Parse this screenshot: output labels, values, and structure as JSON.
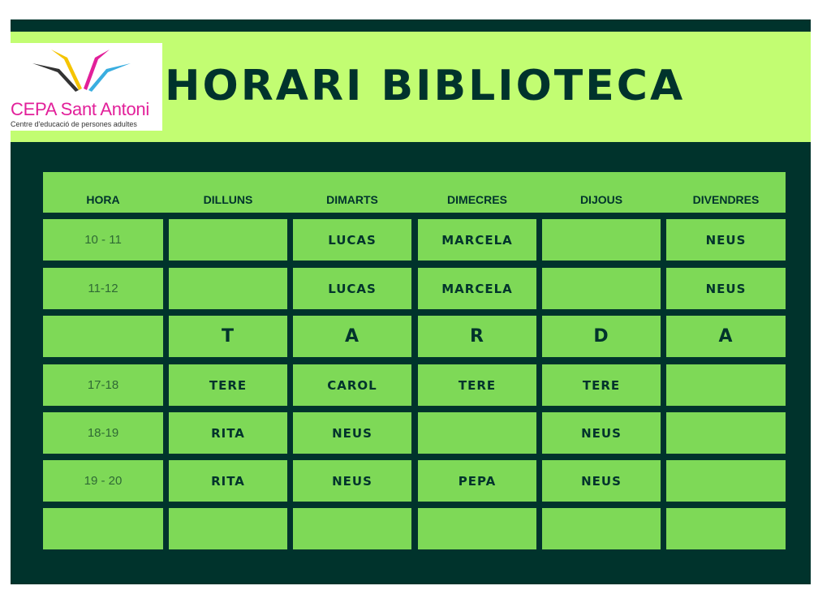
{
  "logo": {
    "name": "CEPA Sant Antoni",
    "subtitle": "Centre d'educació de persones adultes"
  },
  "title": "HORARI BIBLIOTECA",
  "colors": {
    "dark": "#00332c",
    "lime": "#c2fd72",
    "cell": "#7ed957"
  },
  "headers": [
    "HORA",
    "DILLUNS",
    "DIMARTS",
    "DIMECRES",
    "DIJOUS",
    "DIVENDRES"
  ],
  "rows": [
    [
      "10 - 11",
      "",
      "LUCAS",
      "MARCELA",
      "",
      "NEUS"
    ],
    [
      "11-12",
      "",
      "LUCAS",
      "MARCELA",
      "",
      "NEUS"
    ],
    [
      "",
      "T",
      "A",
      "R",
      "D",
      "A"
    ],
    [
      "17-18",
      "TERE",
      "CAROL",
      "TERE",
      "TERE",
      ""
    ],
    [
      "18-19",
      "RITA",
      "NEUS",
      "",
      "NEUS",
      ""
    ],
    [
      "19 - 20",
      "RITA",
      "NEUS",
      "PEPA",
      "NEUS",
      ""
    ],
    [
      "",
      "",
      "",
      "",
      "",
      ""
    ]
  ]
}
